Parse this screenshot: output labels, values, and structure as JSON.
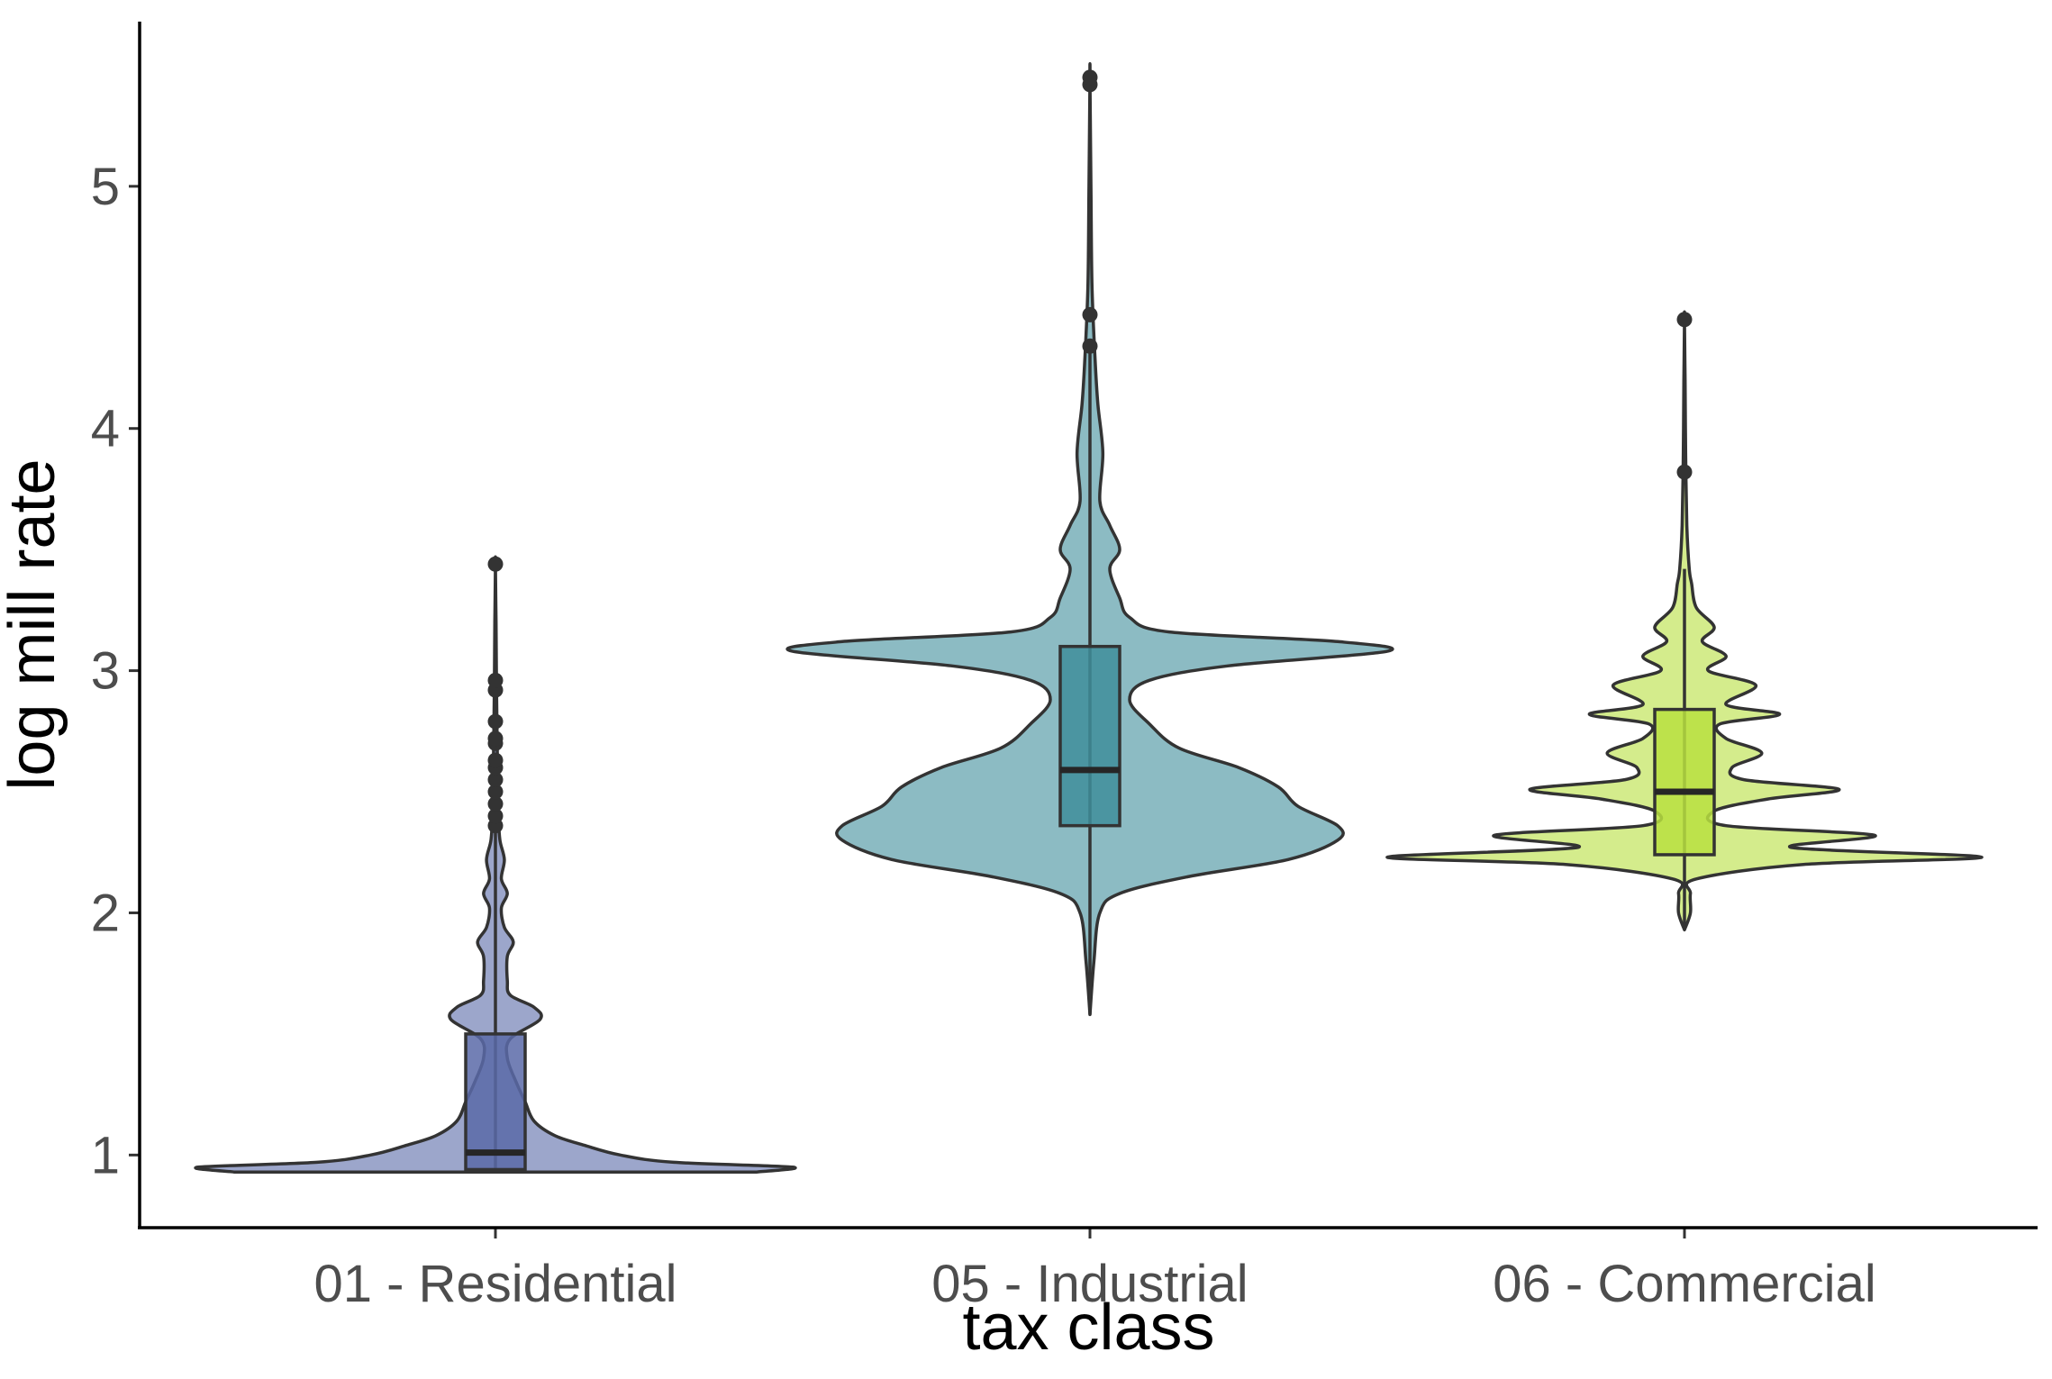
{
  "chart_data": {
    "type": "violin",
    "title": "",
    "xlabel": "tax class",
    "ylabel": "log mill rate",
    "ylim": [
      0.7,
      5.68
    ],
    "yticks": [
      1,
      2,
      3,
      4,
      5
    ],
    "grid": false,
    "legend": "none",
    "categories": [
      "01 - Residential",
      "05 - Industrial",
      "06 - Commercial"
    ],
    "series": [
      {
        "category": "01 - Residential",
        "color": "#5a6aa8",
        "box": {
          "lower": 0.94,
          "q1": 0.94,
          "median": 1.01,
          "q3": 1.5,
          "upper": 2.33
        },
        "outliers": [
          2.36,
          2.4,
          2.45,
          2.5,
          2.55,
          2.6,
          2.63,
          2.7,
          2.72,
          2.79,
          2.92,
          2.96,
          3.44
        ],
        "density": [
          [
            0.93,
            0.88
          ],
          [
            0.95,
            1.0
          ],
          [
            0.97,
            0.6
          ],
          [
            1.0,
            0.42
          ],
          [
            1.04,
            0.3
          ],
          [
            1.08,
            0.2
          ],
          [
            1.14,
            0.13
          ],
          [
            1.22,
            0.1
          ],
          [
            1.3,
            0.07
          ],
          [
            1.4,
            0.04
          ],
          [
            1.48,
            0.05
          ],
          [
            1.56,
            0.15
          ],
          [
            1.61,
            0.13
          ],
          [
            1.66,
            0.05
          ],
          [
            1.72,
            0.04
          ],
          [
            1.82,
            0.04
          ],
          [
            1.88,
            0.06
          ],
          [
            1.94,
            0.03
          ],
          [
            2.02,
            0.02
          ],
          [
            2.08,
            0.04
          ],
          [
            2.14,
            0.02
          ],
          [
            2.22,
            0.03
          ],
          [
            2.3,
            0.015
          ],
          [
            2.4,
            0.01
          ],
          [
            2.6,
            0.007
          ],
          [
            2.9,
            0.004
          ],
          [
            3.2,
            0.002
          ],
          [
            3.44,
            0.0
          ]
        ]
      },
      {
        "category": "05 - Industrial",
        "color": "#3f8e9b",
        "box": {
          "lower": 1.58,
          "q1": 2.36,
          "median": 2.59,
          "q3": 3.1,
          "upper": 4.33
        },
        "outliers": [
          4.34,
          4.47,
          5.42,
          5.45
        ],
        "density": [
          [
            1.58,
            0.0
          ],
          [
            1.8,
            0.004
          ],
          [
            2.0,
            0.01
          ],
          [
            2.08,
            0.03
          ],
          [
            2.15,
            0.1
          ],
          [
            2.22,
            0.2
          ],
          [
            2.3,
            0.25
          ],
          [
            2.36,
            0.25
          ],
          [
            2.44,
            0.21
          ],
          [
            2.52,
            0.19
          ],
          [
            2.6,
            0.15
          ],
          [
            2.68,
            0.09
          ],
          [
            2.78,
            0.06
          ],
          [
            2.88,
            0.04
          ],
          [
            2.96,
            0.06
          ],
          [
            3.02,
            0.14
          ],
          [
            3.08,
            0.3
          ],
          [
            3.12,
            0.25
          ],
          [
            3.16,
            0.08
          ],
          [
            3.22,
            0.04
          ],
          [
            3.3,
            0.03
          ],
          [
            3.42,
            0.02
          ],
          [
            3.5,
            0.03
          ],
          [
            3.6,
            0.02
          ],
          [
            3.7,
            0.01
          ],
          [
            3.9,
            0.013
          ],
          [
            4.1,
            0.008
          ],
          [
            4.3,
            0.005
          ],
          [
            4.6,
            0.002
          ],
          [
            5.0,
            0.001
          ],
          [
            5.45,
            0.0
          ]
        ]
      },
      {
        "category": "06 - Commercial",
        "color": "#b8e040",
        "box": {
          "lower": 1.93,
          "q1": 2.24,
          "median": 2.5,
          "q3": 2.84,
          "upper": 3.42
        },
        "outliers": [
          3.82,
          4.45
        ],
        "density": [
          [
            1.93,
            0.0
          ],
          [
            2.0,
            0.01
          ],
          [
            2.08,
            0.01
          ],
          [
            2.14,
            0.02
          ],
          [
            2.2,
            0.2
          ],
          [
            2.23,
            0.5
          ],
          [
            2.27,
            0.18
          ],
          [
            2.32,
            0.32
          ],
          [
            2.36,
            0.07
          ],
          [
            2.42,
            0.05
          ],
          [
            2.47,
            0.14
          ],
          [
            2.51,
            0.26
          ],
          [
            2.55,
            0.1
          ],
          [
            2.6,
            0.08
          ],
          [
            2.66,
            0.13
          ],
          [
            2.72,
            0.07
          ],
          [
            2.78,
            0.06
          ],
          [
            2.82,
            0.16
          ],
          [
            2.86,
            0.07
          ],
          [
            2.94,
            0.12
          ],
          [
            3.0,
            0.04
          ],
          [
            3.06,
            0.07
          ],
          [
            3.12,
            0.03
          ],
          [
            3.18,
            0.05
          ],
          [
            3.26,
            0.02
          ],
          [
            3.36,
            0.012
          ],
          [
            3.42,
            0.008
          ],
          [
            3.6,
            0.004
          ],
          [
            3.9,
            0.002
          ],
          [
            4.2,
            0.001
          ],
          [
            4.45,
            0.0
          ]
        ]
      }
    ]
  }
}
